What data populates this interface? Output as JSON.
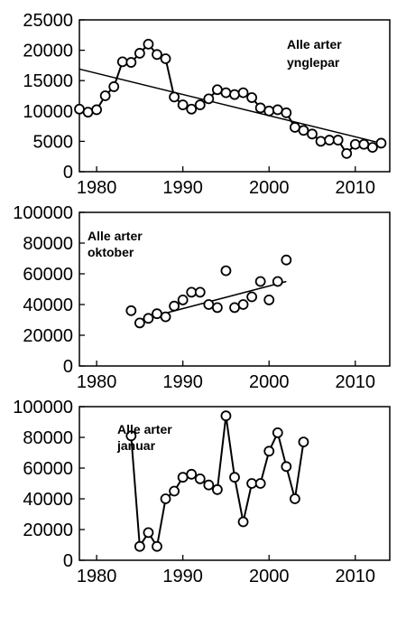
{
  "chart_data": [
    {
      "type": "line",
      "annotation": [
        "Alle arter",
        "ynglepar"
      ],
      "xlim": [
        1978,
        2014
      ],
      "ylim": [
        0,
        25000
      ],
      "xticks": [
        1980,
        1990,
        2000,
        2010
      ],
      "yticks": [
        0,
        5000,
        10000,
        15000,
        20000,
        25000
      ],
      "x": [
        1978,
        1979,
        1980,
        1981,
        1982,
        1983,
        1984,
        1985,
        1986,
        1987,
        1988,
        1989,
        1990,
        1991,
        1992,
        1993,
        1994,
        1995,
        1996,
        1997,
        1998,
        1999,
        2000,
        2001,
        2002,
        2003,
        2004,
        2005,
        2006,
        2007,
        2008,
        2009,
        2010,
        2011,
        2012,
        2013
      ],
      "y": [
        10300,
        9800,
        10200,
        12500,
        14000,
        18100,
        18000,
        19500,
        21000,
        19300,
        18600,
        12300,
        11000,
        10300,
        11000,
        12000,
        13500,
        13000,
        12700,
        13000,
        12200,
        10500,
        10000,
        10200,
        9700,
        7300,
        6800,
        6200,
        5000,
        5200,
        5200,
        3000,
        4500,
        4500,
        4000,
        4700
      ],
      "trend": {
        "x": [
          1978,
          2013
        ],
        "y": [
          16900,
          4700
        ]
      },
      "grid": false,
      "legend": "none"
    },
    {
      "type": "line",
      "annotation": [
        "Alle arter",
        "oktober"
      ],
      "xlim": [
        1978,
        2014
      ],
      "ylim": [
        0,
        100000
      ],
      "xticks": [
        1980,
        1990,
        2000,
        2010
      ],
      "yticks": [
        0,
        20000,
        40000,
        60000,
        80000,
        100000
      ],
      "x": [
        1984,
        1985,
        1986,
        1987,
        1988,
        1989,
        1990,
        1991,
        1992,
        1993,
        1994,
        1995,
        1996,
        1997,
        1998,
        1999,
        2000,
        2001,
        2002
      ],
      "y": [
        36000,
        28000,
        31000,
        34000,
        32000,
        39000,
        43000,
        48000,
        48000,
        40000,
        38000,
        62000,
        38000,
        40000,
        45000,
        55000,
        43000,
        55000,
        69000
      ],
      "trend": {
        "x": [
          1985,
          2002
        ],
        "y": [
          30000,
          55000
        ]
      },
      "connect_points": false,
      "grid": false,
      "legend": "none"
    },
    {
      "type": "line",
      "annotation": [
        "Alle arter",
        "januar"
      ],
      "xlim": [
        1978,
        2014
      ],
      "ylim": [
        0,
        100000
      ],
      "xticks": [
        1980,
        1990,
        2000,
        2010
      ],
      "yticks": [
        0,
        20000,
        40000,
        60000,
        80000,
        100000
      ],
      "x": [
        1984,
        1985,
        1986,
        1987,
        1988,
        1989,
        1990,
        1991,
        1992,
        1993,
        1994,
        1995,
        1996,
        1997,
        1998,
        1999,
        2000,
        2001,
        2002,
        2003,
        2004
      ],
      "y": [
        81000,
        9000,
        18000,
        9000,
        40000,
        45000,
        54000,
        56000,
        53000,
        49000,
        46000,
        94000,
        54000,
        25000,
        50000,
        50000,
        71000,
        83000,
        61000,
        40000,
        77000
      ],
      "connect_points": true,
      "grid": false,
      "legend": "none"
    }
  ]
}
